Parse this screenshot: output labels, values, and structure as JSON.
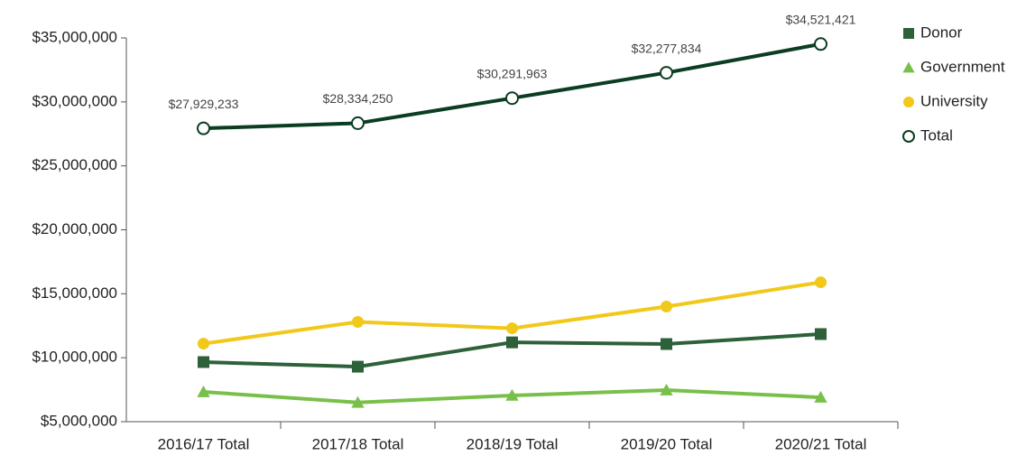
{
  "chart_data": {
    "type": "line",
    "categories": [
      "2016/17 Total",
      "2017/18 Total",
      "2018/19 Total",
      "2019/20 Total",
      "2020/21 Total"
    ],
    "series": [
      {
        "name": "Donor",
        "color": "#2d6139",
        "marker": "square",
        "values": [
          9660000,
          9300000,
          11200000,
          11070000,
          11850000
        ]
      },
      {
        "name": "Government",
        "color": "#79c04a",
        "marker": "triangle",
        "values": [
          7330000,
          6500000,
          7050000,
          7470000,
          6900000
        ]
      },
      {
        "name": "University",
        "color": "#f2c81a",
        "marker": "circle",
        "values": [
          11100000,
          12800000,
          12300000,
          14000000,
          15900000
        ]
      },
      {
        "name": "Total",
        "color": "#0b3d21",
        "marker": "open-circle",
        "values": [
          27929233,
          28334250,
          30291963,
          32277834,
          34521421
        ],
        "value_labels": [
          "$27,929,233",
          "$28,334,250",
          "$30,291,963",
          "$32,277,834",
          "$34,521,421"
        ]
      }
    ],
    "ylim": [
      5000000,
      35000000
    ],
    "yticks": [
      {
        "value": 5000000,
        "label": "$5,000,000"
      },
      {
        "value": 10000000,
        "label": "$10,000,000"
      },
      {
        "value": 15000000,
        "label": "$15,000,000"
      },
      {
        "value": 20000000,
        "label": "$20,000,000"
      },
      {
        "value": 25000000,
        "label": "$25,000,000"
      },
      {
        "value": 30000000,
        "label": "$30,000,000"
      },
      {
        "value": 35000000,
        "label": "$35,000,000"
      }
    ],
    "legend": "right"
  }
}
